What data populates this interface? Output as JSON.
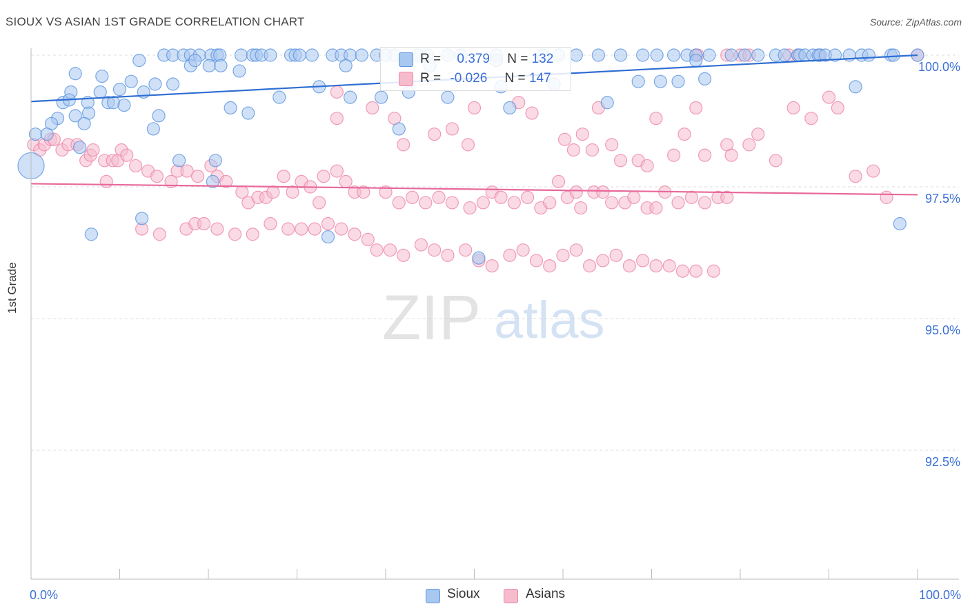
{
  "title": "SIOUX VS ASIAN 1ST GRADE CORRELATION CHART",
  "source": "Source: ZipAtlas.com",
  "watermark": {
    "zip": "ZIP",
    "atlas": "atlas"
  },
  "legend_top": {
    "r_label": "R =",
    "n_label": "N =",
    "sioux": {
      "r": "0.379",
      "n": "132"
    },
    "asians": {
      "r": "-0.026",
      "n": "147"
    }
  },
  "colors": {
    "sioux_fill": "#a9c8f0",
    "sioux_stroke": "#5b93de",
    "sioux_line": "#2f6fd3",
    "asians_fill": "#f6bccd",
    "asians_stroke": "#ec86a8",
    "asians_line": "#e8689a",
    "tick_label": "#3a6fd8",
    "grid": "#dddddd"
  },
  "chart_data": {
    "type": "scatter",
    "title": "SIOUX VS ASIAN 1ST GRADE CORRELATION CHART",
    "xlabel": "",
    "ylabel": "1st Grade",
    "xlim": [
      0,
      100
    ],
    "ylim": [
      90.2,
      100.5
    ],
    "x_tick_labels": [
      "0.0%",
      "100.0%"
    ],
    "y_ticks": [
      100.0,
      97.5,
      95.0,
      92.5
    ],
    "y_tick_labels": [
      "100.0%",
      "97.5%",
      "95.0%",
      "92.5%"
    ],
    "grid": true,
    "legend_placement": "bottom-center",
    "series": [
      {
        "name": "Sioux",
        "R": 0.379,
        "N": 132,
        "trend": {
          "x": [
            0,
            100
          ],
          "y": [
            99.12,
            100.0
          ]
        },
        "points": [
          [
            15.0,
            100.0
          ],
          [
            16.0,
            100.0
          ],
          [
            17.2,
            100.0
          ],
          [
            18.0,
            100.0
          ],
          [
            19.0,
            100.0
          ],
          [
            20.3,
            100.0
          ],
          [
            21.0,
            100.0
          ],
          [
            21.3,
            100.0
          ],
          [
            23.7,
            100.0
          ],
          [
            25.0,
            100.0
          ],
          [
            25.4,
            100.0
          ],
          [
            26.0,
            100.0
          ],
          [
            27.0,
            100.0
          ],
          [
            29.3,
            100.0
          ],
          [
            29.8,
            100.0
          ],
          [
            30.3,
            100.0
          ],
          [
            31.7,
            100.0
          ],
          [
            34.0,
            100.0
          ],
          [
            35.0,
            100.0
          ],
          [
            36.0,
            100.0
          ],
          [
            37.3,
            100.0
          ],
          [
            39.0,
            100.0
          ],
          [
            40.0,
            100.0
          ],
          [
            41.0,
            100.0
          ],
          [
            43.6,
            100.0
          ],
          [
            44.7,
            100.0
          ],
          [
            47.0,
            100.0
          ],
          [
            48.5,
            100.0
          ],
          [
            52.5,
            100.0
          ],
          [
            57.7,
            100.0
          ],
          [
            59.5,
            100.0
          ],
          [
            61.5,
            100.0
          ],
          [
            64.0,
            100.0
          ],
          [
            66.5,
            100.0
          ],
          [
            69.0,
            100.0
          ],
          [
            70.6,
            100.0
          ],
          [
            72.5,
            100.0
          ],
          [
            74.0,
            100.0
          ],
          [
            75.0,
            100.0
          ],
          [
            76.5,
            100.0
          ],
          [
            79.0,
            100.0
          ],
          [
            80.5,
            100.0
          ],
          [
            82.0,
            100.0
          ],
          [
            84.0,
            100.0
          ],
          [
            85.0,
            100.0
          ],
          [
            86.5,
            100.0
          ],
          [
            86.7,
            100.0
          ],
          [
            87.3,
            100.0
          ],
          [
            88.2,
            100.0
          ],
          [
            88.8,
            100.0
          ],
          [
            89.0,
            100.0
          ],
          [
            89.6,
            100.0
          ],
          [
            90.7,
            100.0
          ],
          [
            92.3,
            100.0
          ],
          [
            93.7,
            100.0
          ],
          [
            94.5,
            100.0
          ],
          [
            97.0,
            100.0
          ],
          [
            97.3,
            100.0
          ],
          [
            100.0,
            100.0
          ],
          [
            12.2,
            99.9
          ],
          [
            18.0,
            99.8
          ],
          [
            18.5,
            99.9
          ],
          [
            20.1,
            99.8
          ],
          [
            21.4,
            99.8
          ],
          [
            23.5,
            99.7
          ],
          [
            35.5,
            99.8
          ],
          [
            45.0,
            99.8
          ],
          [
            52.5,
            99.9
          ],
          [
            75.0,
            99.9
          ],
          [
            5.0,
            99.65
          ],
          [
            8.0,
            99.6
          ],
          [
            11.3,
            99.5
          ],
          [
            14.0,
            99.45
          ],
          [
            16.0,
            99.45
          ],
          [
            32.5,
            99.4
          ],
          [
            42.6,
            99.3
          ],
          [
            53.0,
            99.4
          ],
          [
            59.0,
            99.45
          ],
          [
            68.5,
            99.5
          ],
          [
            71.0,
            99.5
          ],
          [
            73.0,
            99.5
          ],
          [
            76.0,
            99.55
          ],
          [
            93.0,
            99.4
          ],
          [
            4.5,
            99.3
          ],
          [
            7.8,
            99.3
          ],
          [
            10.0,
            99.35
          ],
          [
            12.7,
            99.3
          ],
          [
            28.0,
            99.2
          ],
          [
            36.0,
            99.2
          ],
          [
            39.5,
            99.2
          ],
          [
            47.0,
            99.2
          ],
          [
            54.0,
            99.0
          ],
          [
            65.0,
            99.1
          ],
          [
            3.6,
            99.1
          ],
          [
            4.3,
            99.15
          ],
          [
            6.4,
            99.1
          ],
          [
            8.7,
            99.1
          ],
          [
            9.3,
            99.1
          ],
          [
            10.5,
            99.05
          ],
          [
            6.5,
            98.9
          ],
          [
            5.0,
            98.85
          ],
          [
            3.0,
            98.8
          ],
          [
            2.3,
            98.7
          ],
          [
            6.0,
            98.7
          ],
          [
            22.5,
            99.0
          ],
          [
            24.5,
            98.9
          ],
          [
            41.5,
            98.6
          ],
          [
            14.4,
            98.85
          ],
          [
            13.8,
            98.6
          ],
          [
            0.5,
            98.5
          ],
          [
            1.8,
            98.5
          ],
          [
            5.5,
            98.25
          ],
          [
            16.7,
            98.0
          ],
          [
            20.8,
            98.0
          ],
          [
            20.5,
            97.6
          ],
          [
            0.0,
            97.9
          ],
          [
            12.5,
            96.9
          ],
          [
            6.8,
            96.6
          ],
          [
            33.5,
            96.55
          ],
          [
            50.5,
            96.15
          ],
          [
            98.0,
            96.8
          ]
        ]
      },
      {
        "name": "Asians",
        "R": -0.026,
        "N": 147,
        "trend": {
          "x": [
            0,
            100
          ],
          "y": [
            97.56,
            97.35
          ]
        },
        "points": [
          [
            75.0,
            100.0
          ],
          [
            75.2,
            100.0
          ],
          [
            78.5,
            100.0
          ],
          [
            80.0,
            100.0
          ],
          [
            81.0,
            100.0
          ],
          [
            85.5,
            100.0
          ],
          [
            86.5,
            100.0
          ],
          [
            89.0,
            100.0
          ],
          [
            100.0,
            100.0
          ],
          [
            34.5,
            99.3
          ],
          [
            34.5,
            98.8
          ],
          [
            38.5,
            99.0
          ],
          [
            41.0,
            98.8
          ],
          [
            42.0,
            98.3
          ],
          [
            45.5,
            98.5
          ],
          [
            47.5,
            98.6
          ],
          [
            49.3,
            98.3
          ],
          [
            50.0,
            99.0
          ],
          [
            55.0,
            99.1
          ],
          [
            56.5,
            98.9
          ],
          [
            60.2,
            98.4
          ],
          [
            61.2,
            98.2
          ],
          [
            62.2,
            98.5
          ],
          [
            63.3,
            98.2
          ],
          [
            64.0,
            99.0
          ],
          [
            65.5,
            98.3
          ],
          [
            66.5,
            98.0
          ],
          [
            68.5,
            98.0
          ],
          [
            69.5,
            97.9
          ],
          [
            70.5,
            98.8
          ],
          [
            72.5,
            98.1
          ],
          [
            73.7,
            98.5
          ],
          [
            75.0,
            99.0
          ],
          [
            76.0,
            98.1
          ],
          [
            78.5,
            98.3
          ],
          [
            79.0,
            98.1
          ],
          [
            81.0,
            98.3
          ],
          [
            82.0,
            98.5
          ],
          [
            84.0,
            98.0
          ],
          [
            86.0,
            99.0
          ],
          [
            88.0,
            98.8
          ],
          [
            90.0,
            99.2
          ],
          [
            91.0,
            99.0
          ],
          [
            93.0,
            97.7
          ],
          [
            95.0,
            97.8
          ],
          [
            96.5,
            97.3
          ],
          [
            0.3,
            98.3
          ],
          [
            1.0,
            98.2
          ],
          [
            1.5,
            98.3
          ],
          [
            2.2,
            98.4
          ],
          [
            2.6,
            98.4
          ],
          [
            3.5,
            98.2
          ],
          [
            4.2,
            98.3
          ],
          [
            5.2,
            98.3
          ],
          [
            6.2,
            98.0
          ],
          [
            6.7,
            98.1
          ],
          [
            7.0,
            98.2
          ],
          [
            8.3,
            98.0
          ],
          [
            9.2,
            98.0
          ],
          [
            9.8,
            98.0
          ],
          [
            10.2,
            98.2
          ],
          [
            10.8,
            98.1
          ],
          [
            11.8,
            97.9
          ],
          [
            13.2,
            97.8
          ],
          [
            14.2,
            97.7
          ],
          [
            15.8,
            97.6
          ],
          [
            16.5,
            97.8
          ],
          [
            17.6,
            97.8
          ],
          [
            18.8,
            97.7
          ],
          [
            20.3,
            97.9
          ],
          [
            21.0,
            97.7
          ],
          [
            22.0,
            97.6
          ],
          [
            23.8,
            97.4
          ],
          [
            24.5,
            97.2
          ],
          [
            25.6,
            97.3
          ],
          [
            26.5,
            97.3
          ],
          [
            27.3,
            97.4
          ],
          [
            28.5,
            97.7
          ],
          [
            29.5,
            97.4
          ],
          [
            30.5,
            97.6
          ],
          [
            31.5,
            97.5
          ],
          [
            32.5,
            97.2
          ],
          [
            33.0,
            97.7
          ],
          [
            34.5,
            97.8
          ],
          [
            35.5,
            97.6
          ],
          [
            36.5,
            97.4
          ],
          [
            37.5,
            97.4
          ],
          [
            40.0,
            97.4
          ],
          [
            41.5,
            97.2
          ],
          [
            43.0,
            97.3
          ],
          [
            44.5,
            97.2
          ],
          [
            46.0,
            97.3
          ],
          [
            47.5,
            97.2
          ],
          [
            49.5,
            97.1
          ],
          [
            51.0,
            97.2
          ],
          [
            52.0,
            97.4
          ],
          [
            53.0,
            97.3
          ],
          [
            54.5,
            97.2
          ],
          [
            56.0,
            97.3
          ],
          [
            57.5,
            97.1
          ],
          [
            58.5,
            97.2
          ],
          [
            59.5,
            97.6
          ],
          [
            60.5,
            97.3
          ],
          [
            61.5,
            97.4
          ],
          [
            62.0,
            97.1
          ],
          [
            63.5,
            97.4
          ],
          [
            64.5,
            97.4
          ],
          [
            65.5,
            97.2
          ],
          [
            67.0,
            97.2
          ],
          [
            68.0,
            97.3
          ],
          [
            69.5,
            97.1
          ],
          [
            70.5,
            97.1
          ],
          [
            71.5,
            97.4
          ],
          [
            73.0,
            97.2
          ],
          [
            74.5,
            97.3
          ],
          [
            76.0,
            97.2
          ],
          [
            77.5,
            97.3
          ],
          [
            78.5,
            97.3
          ],
          [
            8.5,
            97.6
          ],
          [
            12.5,
            96.7
          ],
          [
            14.5,
            96.6
          ],
          [
            17.5,
            96.7
          ],
          [
            18.5,
            96.8
          ],
          [
            19.5,
            96.8
          ],
          [
            21.0,
            96.7
          ],
          [
            23.0,
            96.6
          ],
          [
            25.0,
            96.6
          ],
          [
            27.0,
            96.8
          ],
          [
            29.0,
            96.7
          ],
          [
            30.5,
            96.7
          ],
          [
            32.0,
            96.7
          ],
          [
            33.5,
            96.8
          ],
          [
            35.0,
            96.7
          ],
          [
            36.5,
            96.6
          ],
          [
            38.0,
            96.5
          ],
          [
            39.0,
            96.3
          ],
          [
            40.5,
            96.3
          ],
          [
            42.0,
            96.2
          ],
          [
            44.0,
            96.4
          ],
          [
            45.5,
            96.3
          ],
          [
            47.0,
            96.2
          ],
          [
            49.0,
            96.3
          ],
          [
            50.5,
            96.1
          ],
          [
            52.0,
            96.0
          ],
          [
            54.0,
            96.2
          ],
          [
            55.5,
            96.3
          ],
          [
            57.0,
            96.1
          ],
          [
            58.5,
            96.0
          ],
          [
            60.0,
            96.2
          ],
          [
            61.5,
            96.3
          ],
          [
            63.0,
            96.0
          ],
          [
            64.5,
            96.1
          ],
          [
            66.0,
            96.2
          ],
          [
            67.5,
            96.0
          ],
          [
            69.0,
            96.1
          ],
          [
            70.5,
            96.0
          ],
          [
            72.0,
            96.0
          ],
          [
            73.5,
            95.9
          ],
          [
            75.0,
            95.9
          ],
          [
            77.0,
            95.9
          ]
        ]
      }
    ]
  },
  "bottom_legend": [
    "Sioux",
    "Asians"
  ]
}
